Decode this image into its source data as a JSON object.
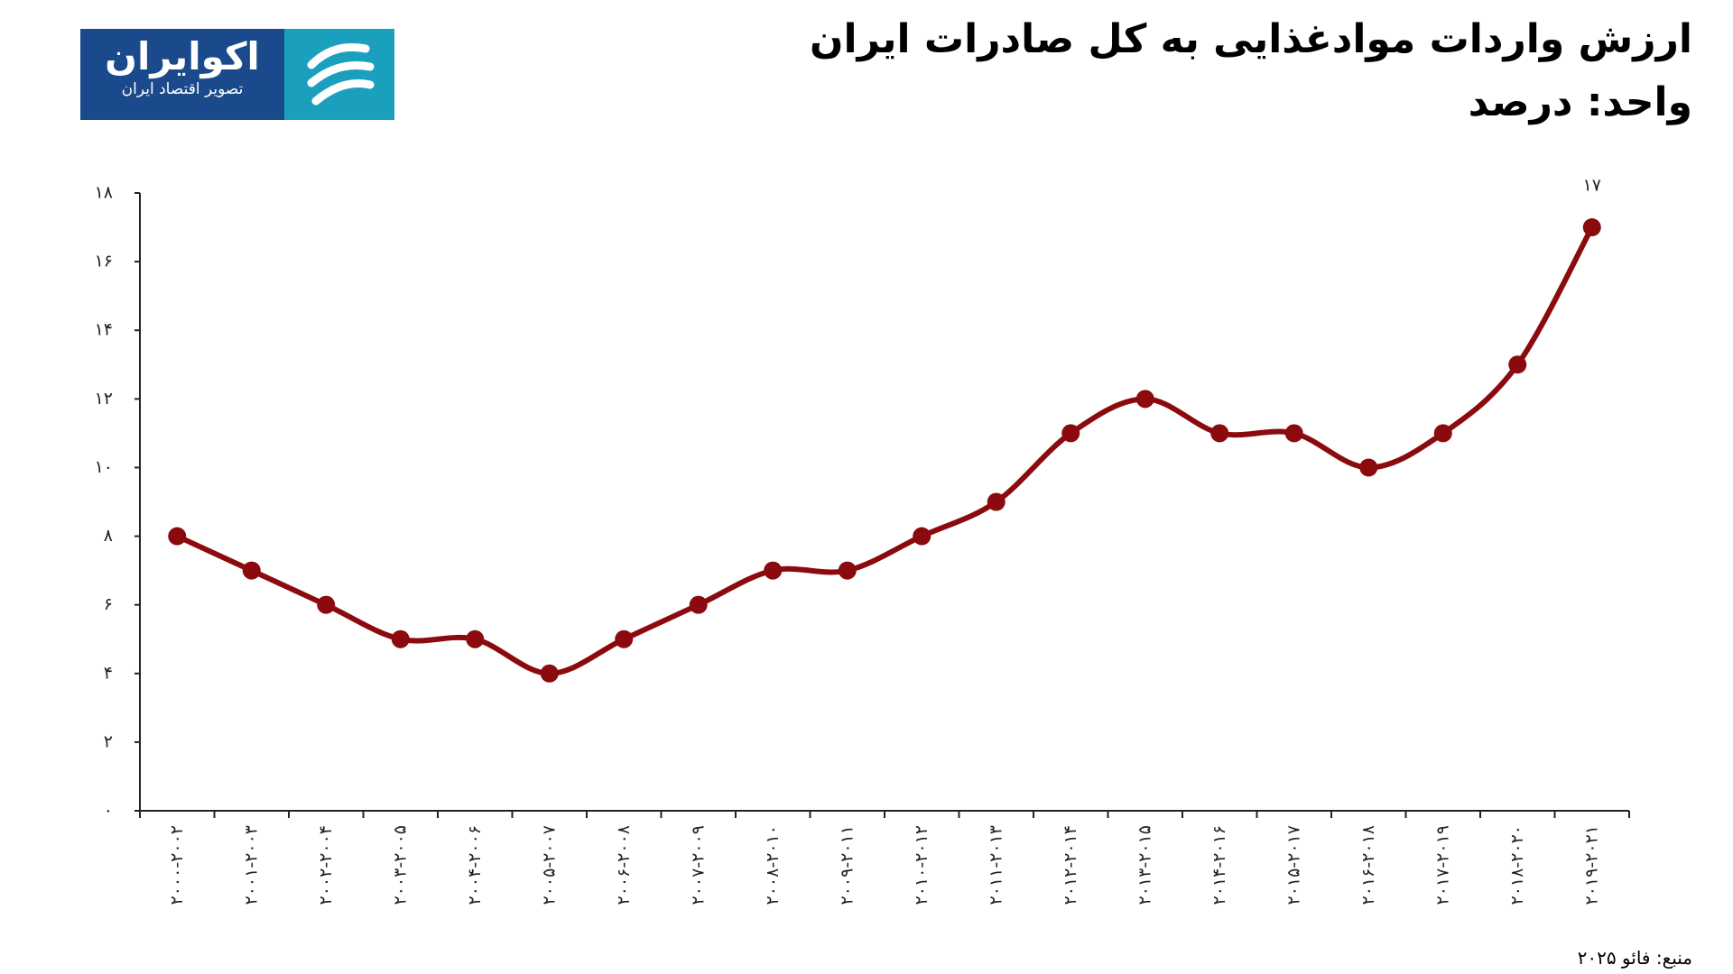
{
  "logo": {
    "name": "اکوایران",
    "tagline": "تصویر اقتصاد ایران"
  },
  "chart_data": {
    "type": "line",
    "title": "ارزش واردات موادغذایی به کل صادرات ایران",
    "subtitle": "واحد: درصد",
    "source": "منبع: فائو ۲۰۲۵",
    "categories": [
      "۲۰۰۰-۲۰۰۲",
      "۲۰۰۱-۲۰۰۳",
      "۲۰۰۲-۲۰۰۴",
      "۲۰۰۳-۲۰۰۵",
      "۲۰۰۴-۲۰۰۶",
      "۲۰۰۵-۲۰۰۷",
      "۲۰۰۶-۲۰۰۸",
      "۲۰۰۷-۲۰۰۹",
      "۲۰۰۸-۲۰۱۰",
      "۲۰۰۹-۲۰۱۱",
      "۲۰۱۰-۲۰۱۲",
      "۲۰۱۱-۲۰۱۳",
      "۲۰۱۲-۲۰۱۴",
      "۲۰۱۳-۲۰۱۵",
      "۲۰۱۴-۲۰۱۶",
      "۲۰۱۵-۲۰۱۷",
      "۲۰۱۶-۲۰۱۸",
      "۲۰۱۷-۲۰۱۹",
      "۲۰۱۸-۲۰۲۰",
      "۲۰۱۹-۲۰۲۱"
    ],
    "values": [
      8,
      7,
      6,
      5,
      5,
      4,
      5,
      6,
      7,
      7,
      8,
      9,
      11,
      12,
      11,
      11,
      10,
      11,
      13,
      17
    ],
    "value_labels": [
      null,
      null,
      null,
      null,
      null,
      null,
      null,
      null,
      null,
      null,
      null,
      null,
      null,
      null,
      null,
      null,
      null,
      null,
      null,
      "۱۷"
    ],
    "color": "#8b0a0e",
    "ylim": [
      0,
      18
    ],
    "yticks": [
      {
        "value": 0,
        "label": "۰"
      },
      {
        "value": 2,
        "label": "۲"
      },
      {
        "value": 4,
        "label": "۴"
      },
      {
        "value": 6,
        "label": "۶"
      },
      {
        "value": 8,
        "label": "۸"
      },
      {
        "value": 10,
        "label": "۱۰"
      },
      {
        "value": 12,
        "label": "۱۲"
      },
      {
        "value": 14,
        "label": "۱۴"
      },
      {
        "value": 16,
        "label": "۱۶"
      },
      {
        "value": 18,
        "label": "۱۸"
      }
    ],
    "grid": false
  }
}
